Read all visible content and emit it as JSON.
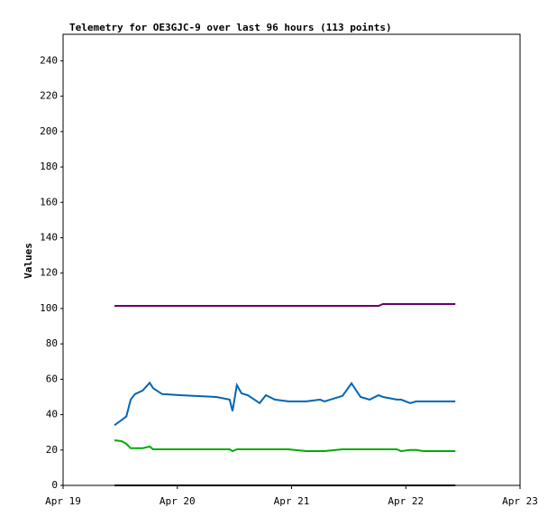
{
  "chart_data": {
    "type": "line",
    "title": "Telemetry for OE3GJC-9 over last 96 hours (113 points)",
    "y_label": "Values",
    "x": [
      10.8,
      12.3,
      13.3,
      14.2,
      15.1,
      16.7,
      18.2,
      18.9,
      20.8,
      24.6,
      32.2,
      35.0,
      35.6,
      36.5,
      37.5,
      38.8,
      41.3,
      42.6,
      44.5,
      47.3,
      51.1,
      54.0,
      54.9,
      58.7,
      60.6,
      62.5,
      64.4,
      66.3,
      67.2,
      70.1,
      71.0,
      72.9,
      74.2,
      75.7,
      82.4
    ],
    "series": [
      {
        "color": "#660066",
        "values": [
          101.5,
          101.5,
          101.5,
          101.5,
          101.5,
          101.5,
          101.5,
          101.5,
          101.5,
          101.5,
          101.5,
          101.5,
          101.5,
          101.5,
          101.5,
          101.5,
          101.5,
          101.5,
          101.5,
          101.5,
          101.5,
          101.5,
          101.5,
          101.5,
          101.5,
          101.5,
          101.5,
          101.5,
          102.5,
          102.5,
          102.5,
          102.5,
          102.5,
          102.5,
          102.5
        ]
      },
      {
        "color": "#0066b3",
        "values": [
          34,
          37,
          39,
          48.5,
          51.6,
          53.6,
          58,
          55,
          51.6,
          51,
          50,
          48.5,
          42,
          56.7,
          52,
          51,
          46.5,
          51,
          48.5,
          47.5,
          47.5,
          48.5,
          47.5,
          50.6,
          57.7,
          50,
          48.5,
          51,
          50,
          48.5,
          48.5,
          46.5,
          47.5,
          47.5,
          47.5
        ]
      },
      {
        "color": "#00aa00",
        "values": [
          25.5,
          25,
          23.5,
          21,
          21,
          21,
          22,
          20.4,
          20.4,
          20.4,
          20.4,
          20.4,
          19.4,
          20.4,
          20.4,
          20.4,
          20.4,
          20.4,
          20.4,
          20.4,
          19.4,
          19.4,
          19.4,
          20.4,
          20.4,
          20.4,
          20.4,
          20.4,
          20.4,
          20.4,
          19.4,
          20,
          20,
          19.4,
          19.4
        ]
      },
      {
        "color": "#000000",
        "values": [
          0,
          0,
          0,
          0,
          0,
          0,
          0,
          0,
          0,
          0,
          0,
          0,
          0,
          0,
          0,
          0,
          0,
          0,
          0,
          0,
          0,
          0,
          0,
          0,
          0,
          0,
          0,
          0,
          0,
          0,
          0,
          0,
          0,
          0,
          0
        ]
      }
    ],
    "xlim": [
      0,
      96
    ],
    "xticks": [
      {
        "value": 0,
        "label": "Apr 19"
      },
      {
        "value": 24,
        "label": "Apr 20"
      },
      {
        "value": 48,
        "label": "Apr 21"
      },
      {
        "value": 72,
        "label": "Apr 22"
      },
      {
        "value": 96,
        "label": "Apr 23"
      }
    ],
    "ylim": [
      0,
      255
    ],
    "yticks": [
      0,
      20,
      40,
      60,
      80,
      100,
      120,
      140,
      160,
      180,
      200,
      220,
      240
    ]
  }
}
